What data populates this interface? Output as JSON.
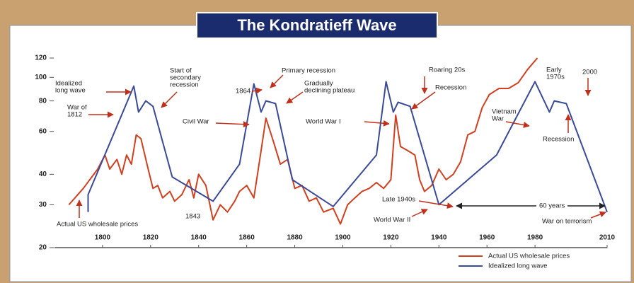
{
  "chart_data": {
    "type": "line",
    "title": "The Kondratieff Wave",
    "log_y": true,
    "xlim": [
      1780,
      2010
    ],
    "xticks": [
      1800,
      1820,
      1840,
      1860,
      1880,
      1900,
      1920,
      1940,
      1960,
      1980,
      2010
    ],
    "ylim": [
      20,
      120
    ],
    "yticks": [
      20,
      30,
      40,
      60,
      80,
      100,
      120
    ],
    "legend": "lower right",
    "series": [
      {
        "name": "Actual US wholesale prices",
        "color": "#d2401e",
        "x": [
          1786,
          1792,
          1798,
          1801,
          1803,
          1806,
          1808,
          1810,
          1812,
          1814,
          1816,
          1819,
          1821,
          1823,
          1825,
          1828,
          1830,
          1833,
          1836,
          1838,
          1840,
          1843,
          1846,
          1849,
          1852,
          1855,
          1857,
          1860,
          1863,
          1866,
          1868,
          1871,
          1874,
          1877,
          1880,
          1883,
          1886,
          1889,
          1892,
          1896,
          1899,
          1902,
          1905,
          1908,
          1911,
          1914,
          1917,
          1920,
          1922,
          1924,
          1927,
          1930,
          1932,
          1934,
          1937,
          1940,
          1943,
          1946,
          1949,
          1952,
          1955,
          1958,
          1961,
          1965,
          1969,
          1973,
          1977,
          1981
        ],
        "values": [
          30,
          35,
          42,
          48,
          42,
          46,
          40,
          48,
          44,
          58,
          56,
          42,
          35,
          36,
          32,
          34,
          31,
          33,
          38,
          32,
          40,
          36,
          26,
          30,
          28,
          31,
          34,
          36,
          32,
          50,
          68,
          55,
          44,
          46,
          35,
          36,
          31,
          32,
          28,
          29,
          25,
          30,
          32,
          34,
          35,
          37,
          35,
          38,
          70,
          52,
          50,
          48,
          38,
          34,
          36,
          42,
          38,
          40,
          45,
          58,
          60,
          75,
          85,
          90,
          90,
          95,
          108,
          120
        ]
      },
      {
        "name": "Idealized long wave",
        "color": "#3a4a9a",
        "x": [
          1794,
          1794,
          1813,
          1815,
          1818,
          1821,
          1829,
          1846,
          1857,
          1863,
          1866,
          1868,
          1872,
          1879,
          1896,
          1914,
          1918,
          1921,
          1923,
          1928,
          1940,
          1964,
          1980,
          1986,
          1988,
          1993,
          2010
        ],
        "values": [
          28,
          33,
          92,
          72,
          80,
          76,
          39,
          31,
          44,
          94,
          72,
          80,
          78,
          38,
          29.5,
          48,
          96,
          72,
          79,
          76,
          30,
          48,
          96,
          72,
          80,
          78,
          28
        ]
      }
    ],
    "annotations": [
      [
        "Idealized",
        "long wave"
      ],
      [
        "War of",
        "1812"
      ],
      [
        "Start of",
        "secondary",
        "recession"
      ],
      [
        "Civil War"
      ],
      [
        "1864"
      ],
      [
        "1843"
      ],
      [
        "Actual US wholesale prices"
      ],
      [
        "Primary recession"
      ],
      [
        "Gradually",
        "declining plateau"
      ],
      [
        "World War I"
      ],
      [
        "Roaring 20s"
      ],
      [
        "Recession"
      ],
      [
        "Late 1940s"
      ],
      [
        "World War II"
      ],
      [
        "60 years"
      ],
      [
        "War on terrorism"
      ],
      [
        "Vietnam",
        "War"
      ],
      [
        "Early",
        "1970s"
      ],
      [
        "2000"
      ],
      [
        "Recession"
      ]
    ]
  }
}
